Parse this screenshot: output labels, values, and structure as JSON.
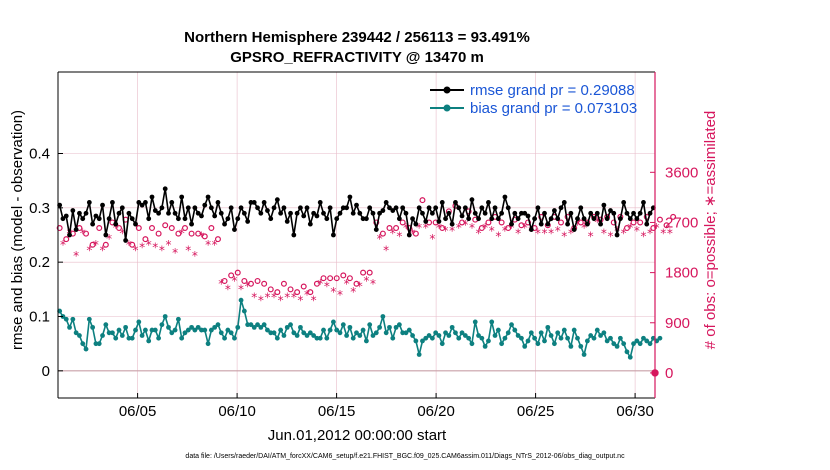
{
  "chart_data": {
    "type": "line",
    "title_line1": "Northern Hemisphere 239442 / 256113 = 93.491%",
    "title_line2": "GPSRO_REFRACTIVITY @ 13470 m",
    "xlabel": "Jun.01,2012 00:00:00 start",
    "ylabel_left": "rmse and bias (model - observation)",
    "ylabel_right": "# of obs: o=possible; ∗=assimilated",
    "footnote": "data file: /Users/raeder/DAI/ATM_forcXX/CAM6_setup/f.e21.FHIST_BGC.f09_025.CAM6assim.011/Diags_NTrS_2012-06/obs_diag_output.nc",
    "x_tick_labels": [
      "06/05",
      "06/10",
      "06/15",
      "06/20",
      "06/25",
      "06/30"
    ],
    "x_tick_days": [
      5,
      10,
      15,
      20,
      25,
      30
    ],
    "xlim": [
      1.0,
      31.0
    ],
    "ylim_left": [
      -0.05,
      0.55
    ],
    "y_left_ticks": [
      0,
      0.1,
      0.2,
      0.3,
      0.4
    ],
    "y_left_tick_labels": [
      "0",
      "0.1",
      "0.2",
      "0.3",
      "0.4"
    ],
    "ylim_right": [
      -450,
      5400
    ],
    "y_right_ticks": [
      0,
      900,
      1800,
      2700,
      3600
    ],
    "y_right_tick_labels": [
      "0",
      "900",
      "1800",
      "2700",
      "3600"
    ],
    "grid": true,
    "legend_position": "top-right",
    "colors": {
      "rmse": "#000000",
      "bias": "#0d8080",
      "obs": "#d6165d",
      "legend_text": "#1a56d6",
      "grid": "#e8bcc9"
    },
    "series": [
      {
        "name": "rmse grand pr = 0.29088",
        "color": "#000000",
        "values": [
          0.305,
          0.28,
          0.285,
          0.25,
          0.295,
          0.26,
          0.29,
          0.28,
          0.29,
          0.31,
          0.27,
          0.285,
          0.28,
          0.305,
          0.25,
          0.28,
          0.31,
          0.27,
          0.29,
          0.3,
          0.24,
          0.29,
          0.28,
          0.27,
          0.31,
          0.305,
          0.31,
          0.28,
          0.32,
          0.295,
          0.29,
          0.3,
          0.335,
          0.29,
          0.31,
          0.29,
          0.28,
          0.32,
          0.28,
          0.3,
          0.27,
          0.3,
          0.29,
          0.285,
          0.305,
          0.32,
          0.3,
          0.285,
          0.31,
          0.29,
          0.27,
          0.28,
          0.3,
          0.26,
          0.28,
          0.3,
          0.29,
          0.275,
          0.31,
          0.31,
          0.3,
          0.29,
          0.31,
          0.295,
          0.28,
          0.3,
          0.315,
          0.29,
          0.3,
          0.275,
          0.29,
          0.25,
          0.29,
          0.3,
          0.285,
          0.3,
          0.27,
          0.29,
          0.285,
          0.31,
          0.29,
          0.28,
          0.3,
          0.25,
          0.28,
          0.29,
          0.3,
          0.3,
          0.32,
          0.29,
          0.305,
          0.29,
          0.28,
          0.28,
          0.3,
          0.29,
          0.26,
          0.29,
          0.295,
          0.31,
          0.3,
          0.295,
          0.3,
          0.28,
          0.3,
          0.29,
          0.25,
          0.28,
          0.27,
          0.3,
          0.29,
          0.275,
          0.3,
          0.29,
          0.3,
          0.275,
          0.31,
          0.28,
          0.29,
          0.27,
          0.31,
          0.3,
          0.285,
          0.3,
          0.28,
          0.315,
          0.29,
          0.28,
          0.3,
          0.29,
          0.31,
          0.28,
          0.3,
          0.28,
          0.29,
          0.32,
          0.3,
          0.27,
          0.29,
          0.28,
          0.29,
          0.29,
          0.285,
          0.26,
          0.28,
          0.3,
          0.27,
          0.29,
          0.27,
          0.28,
          0.295,
          0.28,
          0.3,
          0.31,
          0.27,
          0.29,
          0.26,
          0.28,
          0.3,
          0.28,
          0.27,
          0.29,
          0.28,
          0.29,
          0.27,
          0.305,
          0.28,
          0.295,
          0.29,
          0.25,
          0.28,
          0.31,
          0.29,
          0.28,
          0.29,
          0.28,
          0.29,
          0.31,
          0.27,
          0.29,
          0.3
        ]
      },
      {
        "name": "bias grand pr = 0.073103",
        "color": "#0d8080",
        "values": [
          0.11,
          0.1,
          0.095,
          0.08,
          0.095,
          0.07,
          0.065,
          0.05,
          0.04,
          0.095,
          0.08,
          0.05,
          0.05,
          0.065,
          0.085,
          0.07,
          0.07,
          0.06,
          0.075,
          0.065,
          0.08,
          0.06,
          0.06,
          0.075,
          0.09,
          0.065,
          0.075,
          0.055,
          0.075,
          0.075,
          0.06,
          0.085,
          0.1,
          0.08,
          0.07,
          0.075,
          0.095,
          0.06,
          0.07,
          0.075,
          0.08,
          0.075,
          0.08,
          0.075,
          0.075,
          0.05,
          0.075,
          0.08,
          0.085,
          0.07,
          0.06,
          0.075,
          0.07,
          0.06,
          0.08,
          0.13,
          0.11,
          0.085,
          0.085,
          0.08,
          0.085,
          0.08,
          0.085,
          0.075,
          0.07,
          0.07,
          0.06,
          0.075,
          0.065,
          0.08,
          0.085,
          0.07,
          0.065,
          0.08,
          0.07,
          0.065,
          0.07,
          0.065,
          0.06,
          0.06,
          0.075,
          0.06,
          0.075,
          0.09,
          0.075,
          0.07,
          0.085,
          0.065,
          0.08,
          0.06,
          0.07,
          0.065,
          0.075,
          0.055,
          0.085,
          0.065,
          0.07,
          0.08,
          0.1,
          0.07,
          0.08,
          0.06,
          0.08,
          0.085,
          0.07,
          0.07,
          0.075,
          0.065,
          0.055,
          0.03,
          0.055,
          0.06,
          0.065,
          0.06,
          0.07,
          0.065,
          0.05,
          0.07,
          0.065,
          0.08,
          0.07,
          0.06,
          0.07,
          0.065,
          0.06,
          0.05,
          0.09,
          0.065,
          0.06,
          0.045,
          0.055,
          0.09,
          0.065,
          0.075,
          0.05,
          0.06,
          0.07,
          0.085,
          0.075,
          0.065,
          0.06,
          0.045,
          0.055,
          0.07,
          0.06,
          0.05,
          0.07,
          0.055,
          0.08,
          0.065,
          0.05,
          0.07,
          0.06,
          0.075,
          0.06,
          0.045,
          0.075,
          0.06,
          0.045,
          0.03,
          0.055,
          0.065,
          0.06,
          0.075,
          0.065,
          0.07,
          0.055,
          0.06,
          0.05,
          0.045,
          0.06,
          0.05,
          0.035,
          0.025,
          0.05,
          0.055,
          0.05,
          0.06,
          0.055,
          0.05,
          0.06,
          0.055,
          0.06
        ]
      },
      {
        "name": "possible",
        "color": "#d6165d",
        "axis": "right",
        "values": [
          2600,
          2500,
          2400,
          2700,
          2500,
          2300,
          2600,
          2700,
          2500,
          2400,
          2300,
          2500,
          2600,
          2400,
          2300,
          2600,
          2700,
          2800,
          2600,
          2700,
          2750,
          2500,
          2300,
          2400,
          2600,
          2450,
          2400,
          2500,
          2600,
          2450,
          2500,
          2400,
          2650,
          2500,
          2600,
          2350,
          2500,
          2700,
          2600,
          2400,
          2500,
          2300,
          2500,
          2650,
          2450,
          2500,
          2600,
          2500,
          2400,
          1800,
          1650,
          1700,
          1750,
          1850,
          1800,
          1700,
          1650,
          1750,
          1600,
          1550,
          1650,
          1500,
          1600,
          1550,
          1500,
          1550,
          1450,
          1500,
          1600,
          1550,
          1500,
          1550,
          1450,
          1500,
          1550,
          1600,
          1450,
          1500,
          1600,
          1800,
          1700,
          1750,
          1700,
          1650,
          1700,
          1600,
          1750,
          1800,
          1700,
          1650,
          1600,
          1750,
          1800,
          1850,
          1800,
          1800,
          2700,
          2600,
          2500,
          2400,
          2600,
          2700,
          2600,
          2650,
          2700,
          2800,
          2600,
          2700,
          2500,
          2800,
          3100,
          2800,
          2700,
          2600,
          2700,
          2800,
          2600,
          2750,
          2900,
          2750,
          3000,
          2800,
          2700,
          2850,
          2900,
          2800,
          2750,
          2700,
          2600,
          2800,
          2700,
          2750,
          2800,
          2650,
          2700,
          2750,
          2600,
          2800,
          2750,
          2700,
          2650,
          2800,
          2700,
          2750,
          2600,
          2700,
          2800,
          2700,
          2650,
          2700,
          2800,
          2750,
          2700,
          2650,
          2800,
          2700,
          2600,
          2850,
          2700,
          2800,
          2700,
          2650,
          2800,
          2900,
          2750,
          2700,
          2800,
          2650,
          2700,
          2750,
          2800,
          2700,
          2600,
          2800,
          2700,
          2750,
          2700,
          2650,
          2800,
          2700,
          2600,
          2800,
          2750,
          2700,
          2650,
          2700,
          2800
        ]
      },
      {
        "name": "assimilated",
        "color": "#d6165d",
        "axis": "right",
        "values": [
          2400,
          2300,
          2200,
          2500,
          2300,
          2100,
          2400,
          2500,
          2300,
          2200,
          2100,
          2300,
          2400,
          2200,
          2100,
          2400,
          2500,
          2600,
          2400,
          2500,
          2550,
          2300,
          2100,
          2200,
          2400,
          2250,
          2200,
          2300,
          2400,
          2250,
          2300,
          2200,
          2450,
          2300,
          2400,
          2150,
          2300,
          2500,
          2400,
          2200,
          2300,
          2100,
          2300,
          2450,
          2250,
          2300,
          2400,
          2300,
          2200,
          1600,
          1450,
          1500,
          1550,
          1650,
          1600,
          1500,
          1450,
          1550,
          1400,
          1350,
          1450,
          1300,
          1400,
          1350,
          1300,
          1350,
          1250,
          1300,
          1400,
          1350,
          1300,
          1350,
          1250,
          1300,
          1350,
          1400,
          1250,
          1300,
          1400,
          1600,
          1500,
          1550,
          1500,
          1450,
          1500,
          1400,
          1550,
          1600,
          1500,
          1450,
          1400,
          1550,
          1600,
          1650,
          1600,
          1600,
          2500,
          2400,
          2300,
          2200,
          2400,
          2500,
          2400,
          2450,
          2500,
          2600,
          2400,
          2500,
          2300,
          2600,
          2900,
          2600,
          2500,
          2400,
          2500,
          2600,
          2400,
          2550,
          2700,
          2550,
          2800,
          2600,
          2500,
          2650,
          2700,
          2600,
          2550,
          2500,
          2400,
          2600,
          2500,
          2550,
          2600,
          2450,
          2500,
          2550,
          2400,
          2600,
          2550,
          2500,
          2450,
          2600,
          2500,
          2550,
          2400,
          2500,
          2600,
          2500,
          2450,
          2500,
          2600,
          2550,
          2500,
          2450,
          2600,
          2500,
          2400,
          2650,
          2500,
          2600,
          2500,
          2450,
          2600,
          2700,
          2550,
          2500,
          2600,
          2450,
          2500,
          2550,
          2600,
          2500,
          2400,
          2600,
          2500,
          2550,
          2500,
          2450,
          2600,
          2500,
          2400,
          2600,
          2550,
          2500,
          2450,
          2500,
          2600
        ]
      }
    ],
    "legend": [
      {
        "label": "rmse grand pr = 0.29088",
        "series": "rmse"
      },
      {
        "label": "bias grand pr = 0.073103",
        "series": "bias"
      }
    ]
  }
}
